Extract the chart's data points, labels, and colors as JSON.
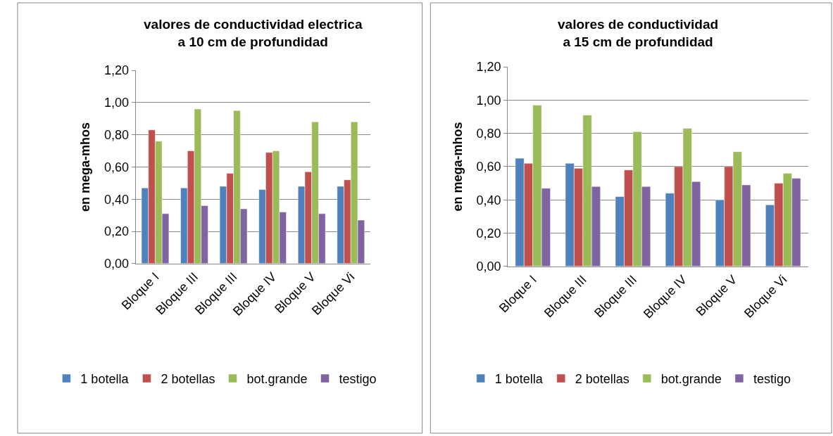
{
  "chart_data": [
    {
      "type": "bar",
      "title": "valores de conductividad electrica\na 10 cm de profundidad",
      "ylabel": "en mega-mhos",
      "categories": [
        "Bloque I",
        "Bloque III",
        "Bloque III",
        "Bloque IV",
        "Bloque V",
        "Bloque Vi"
      ],
      "series": [
        {
          "name": "1 botella",
          "color": "#4f81bd",
          "values": [
            0.47,
            0.47,
            0.48,
            0.46,
            0.48,
            0.48
          ]
        },
        {
          "name": "2 botellas",
          "color": "#c0504d",
          "values": [
            0.83,
            0.7,
            0.56,
            0.69,
            0.57,
            0.52
          ]
        },
        {
          "name": "bot.grande",
          "color": "#9bbb59",
          "values": [
            0.76,
            0.96,
            0.95,
            0.7,
            0.88,
            0.88
          ]
        },
        {
          "name": "testigo",
          "color": "#8064a2",
          "values": [
            0.31,
            0.36,
            0.34,
            0.32,
            0.31,
            0.27
          ]
        }
      ],
      "ylim": [
        0,
        1.2
      ],
      "yticks": [
        {
          "value": 0,
          "label": "0,00"
        },
        {
          "value": 0.2,
          "label": "0,20"
        },
        {
          "value": 0.4,
          "label": "0,40"
        },
        {
          "value": 0.6,
          "label": "0,60"
        },
        {
          "value": 0.8,
          "label": "0,80"
        },
        {
          "value": 1.0,
          "label": "1,00"
        },
        {
          "value": 1.2,
          "label": "1,20"
        }
      ],
      "grid": "y",
      "legend": "bottom"
    },
    {
      "type": "bar",
      "title": "valores de conductividad\na 15 cm de profundidad",
      "ylabel": "en mega-mhos",
      "categories": [
        "Bloque I",
        "Bloque III",
        "Bloque III",
        "Bloque IV",
        "Bloque V",
        "Bloque Vi"
      ],
      "series": [
        {
          "name": "1 botella",
          "color": "#4f81bd",
          "values": [
            0.65,
            0.62,
            0.42,
            0.44,
            0.4,
            0.37
          ]
        },
        {
          "name": "2 botellas",
          "color": "#c0504d",
          "values": [
            0.62,
            0.59,
            0.58,
            0.6,
            0.6,
            0.5
          ]
        },
        {
          "name": "bot.grande",
          "color": "#9bbb59",
          "values": [
            0.97,
            0.91,
            0.81,
            0.83,
            0.69,
            0.56
          ]
        },
        {
          "name": "testigo",
          "color": "#8064a2",
          "values": [
            0.47,
            0.48,
            0.48,
            0.51,
            0.49,
            0.53
          ]
        }
      ],
      "ylim": [
        0,
        1.2
      ],
      "yticks": [
        {
          "value": 0,
          "label": "0,00"
        },
        {
          "value": 0.2,
          "label": "0,20"
        },
        {
          "value": 0.4,
          "label": "0,40"
        },
        {
          "value": 0.6,
          "label": "0,60"
        },
        {
          "value": 0.8,
          "label": "0,80"
        },
        {
          "value": 1.0,
          "label": "1,00"
        },
        {
          "value": 1.2,
          "label": "1,20"
        }
      ],
      "grid": "y",
      "legend": "bottom"
    }
  ]
}
